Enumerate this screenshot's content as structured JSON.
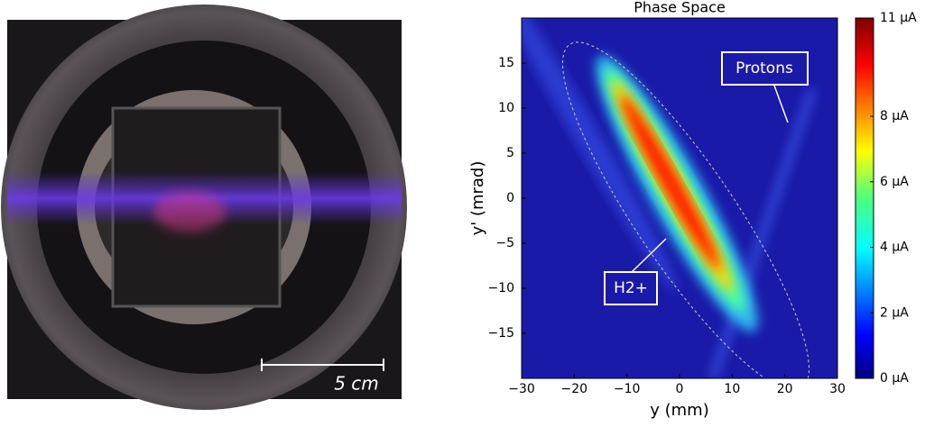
{
  "photo": {
    "scale_label": "5 cm"
  },
  "chart_data": {
    "type": "heatmap",
    "title": "Phase Space",
    "x_label": "y (mm)",
    "y_label": "y' (mrad)",
    "xlim": [
      -30,
      30
    ],
    "xticks": [
      {
        "value": -30,
        "label": "−30"
      },
      {
        "value": -20,
        "label": "−20"
      },
      {
        "value": -10,
        "label": "−10"
      },
      0,
      10,
      20,
      30
    ],
    "ylim": [
      -20,
      20
    ],
    "yticks": [
      {
        "value": -15,
        "label": "−15"
      },
      {
        "value": -10,
        "label": "−10"
      },
      {
        "value": -5,
        "label": "−5"
      },
      0,
      5,
      10,
      15
    ],
    "clim": [
      0,
      11
    ],
    "cticks": [
      {
        "value": 0,
        "label": "0 μA"
      },
      {
        "value": 2,
        "label": "2 μA"
      },
      {
        "value": 4,
        "label": "4 μA"
      },
      {
        "value": 6,
        "label": "6 μA"
      },
      {
        "value": 8,
        "label": "8 μA"
      },
      {
        "value": 11,
        "label": "11 μA"
      }
    ],
    "colormap": "jet",
    "annotations": [
      "Protons",
      "H2+"
    ]
  }
}
